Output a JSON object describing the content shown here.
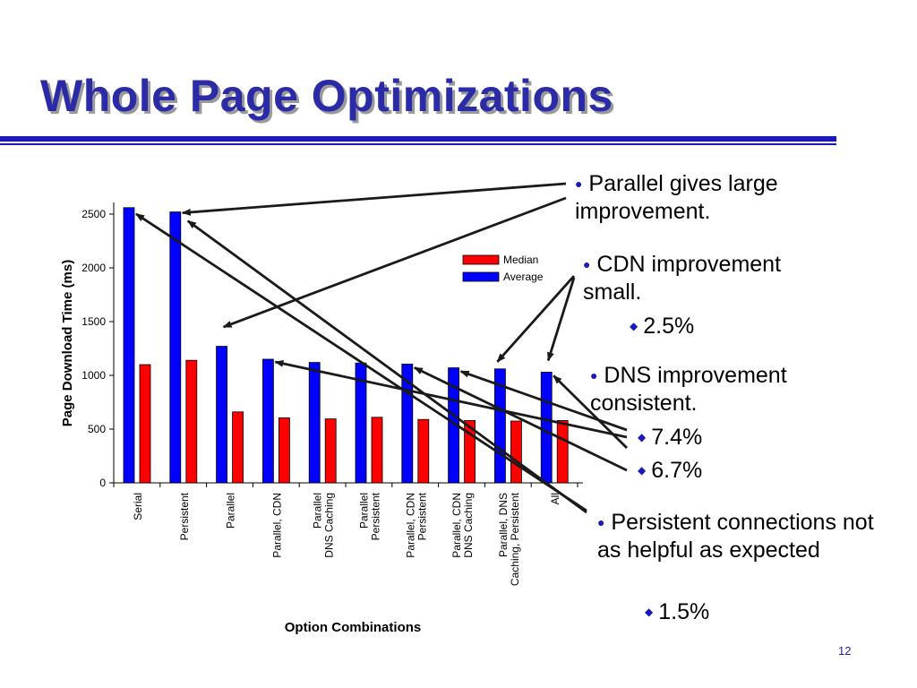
{
  "slide": {
    "title": "Whole Page Optimizations",
    "page_number": "12",
    "accent_color": "#1a1ab8"
  },
  "notes": [
    {
      "bullet": "Parallel gives large improvement.",
      "subs": []
    },
    {
      "bullet": "CDN improvement small.",
      "subs": [
        "2.5%"
      ]
    },
    {
      "bullet": "DNS improvement consistent.",
      "subs": [
        "7.4%",
        "6.7%"
      ]
    },
    {
      "bullet": "Persistent connections not as helpful as expected",
      "subs": [
        "1.5%"
      ]
    }
  ],
  "chart_data": {
    "type": "bar",
    "xlabel": "Option Combinations",
    "ylabel": "Page Download Time (ms)",
    "ylim": [
      0,
      2600
    ],
    "yticks": [
      0,
      500,
      1000,
      1500,
      2000,
      2500
    ],
    "legend_position": "top-right",
    "categories": [
      [
        "Serial"
      ],
      [
        "Persistent"
      ],
      [
        "Parallel"
      ],
      [
        "Parallel, CDN"
      ],
      [
        "Parallel",
        "DNS Caching"
      ],
      [
        "Parallel",
        "Persistent"
      ],
      [
        "Parallel, CDN",
        "Persistent"
      ],
      [
        "Parallel, CDN",
        "DNS Caching"
      ],
      [
        "Parallel, DNS",
        "Caching, Persistent"
      ],
      [
        "All"
      ]
    ],
    "series": [
      {
        "name": "Average",
        "color": "#0000ff",
        "values": [
          2560,
          2520,
          1270,
          1150,
          1120,
          1115,
          1105,
          1070,
          1060,
          1030
        ]
      },
      {
        "name": "Median",
        "color": "#ff0000",
        "values": [
          1100,
          1140,
          660,
          605,
          595,
          610,
          590,
          580,
          575,
          580
        ]
      }
    ],
    "legend_order": [
      "Median",
      "Average"
    ]
  }
}
